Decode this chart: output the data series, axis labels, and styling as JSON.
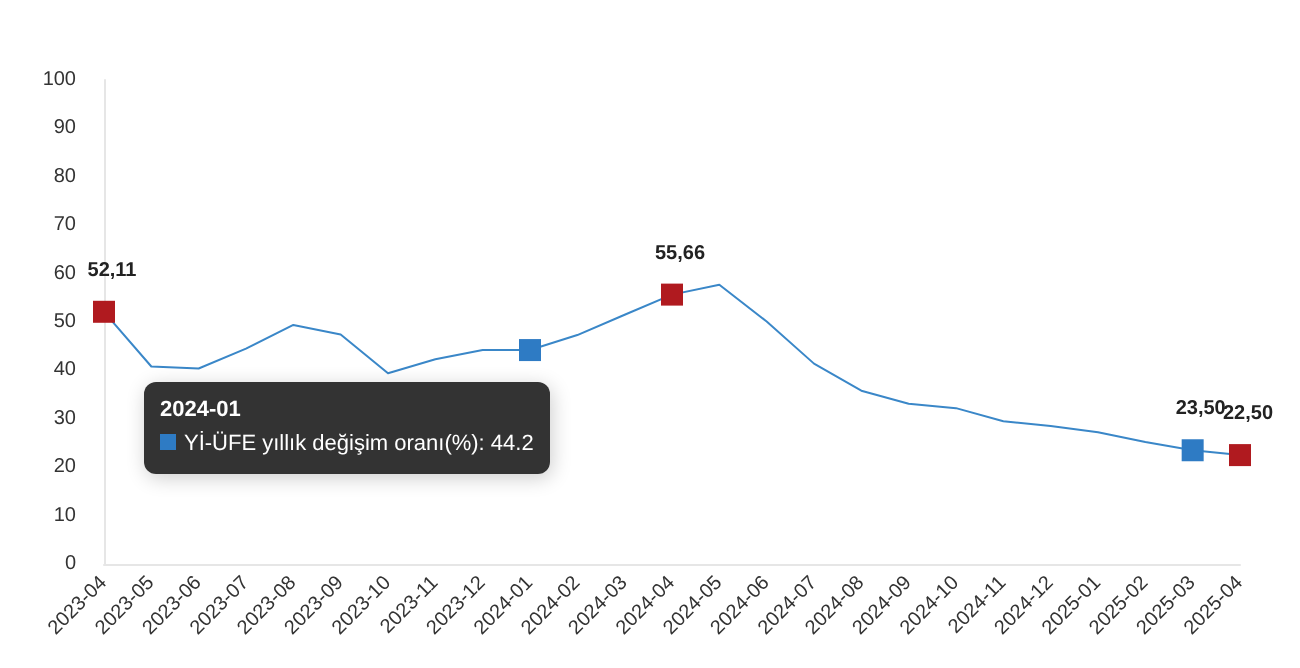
{
  "chart_data": {
    "type": "line",
    "categories": [
      "2023-04",
      "2023-05",
      "2023-06",
      "2023-07",
      "2023-08",
      "2023-09",
      "2023-10",
      "2023-11",
      "2023-12",
      "2024-01",
      "2024-02",
      "2024-03",
      "2024-04",
      "2024-05",
      "2024-06",
      "2024-07",
      "2024-08",
      "2024-09",
      "2024-10",
      "2024-11",
      "2024-12",
      "2025-01",
      "2025-02",
      "2025-03",
      "2025-04"
    ],
    "series": [
      {
        "color": "#3a87c8",
        "values": [
          52.11,
          40.8,
          40.4,
          44.5,
          49.4,
          47.4,
          39.4,
          42.3,
          44.2,
          44.2,
          47.3,
          51.5,
          55.66,
          57.7,
          50.1,
          41.4,
          35.8,
          33.1,
          32.2,
          29.5,
          28.5,
          27.2,
          25.2,
          23.5,
          22.5
        ],
        "colors": [
          "#b01a1f",
          null,
          null,
          null,
          null,
          null,
          null,
          null,
          null,
          "#2e7bc4",
          null,
          null,
          "#b01a1f",
          null,
          null,
          null,
          null,
          null,
          null,
          null,
          null,
          null,
          null,
          "#2e7bc4",
          "#b01a1f"
        ],
        "value_labels": [
          "52,11",
          null,
          null,
          null,
          null,
          null,
          null,
          null,
          null,
          null,
          null,
          null,
          "55,66",
          null,
          null,
          null,
          null,
          null,
          null,
          null,
          null,
          null,
          null,
          "23,50",
          "22,50"
        ]
      }
    ],
    "ylim": [
      0,
      100
    ],
    "yticks": [
      0,
      10,
      20,
      30,
      40,
      50,
      60,
      70,
      80,
      90,
      100
    ],
    "grid": false,
    "line_style": "solid",
    "annotations": [
      "2024-01",
      "Yİ-ÜFE yıllık değişim oranı(%): 44.2"
    ]
  }
}
